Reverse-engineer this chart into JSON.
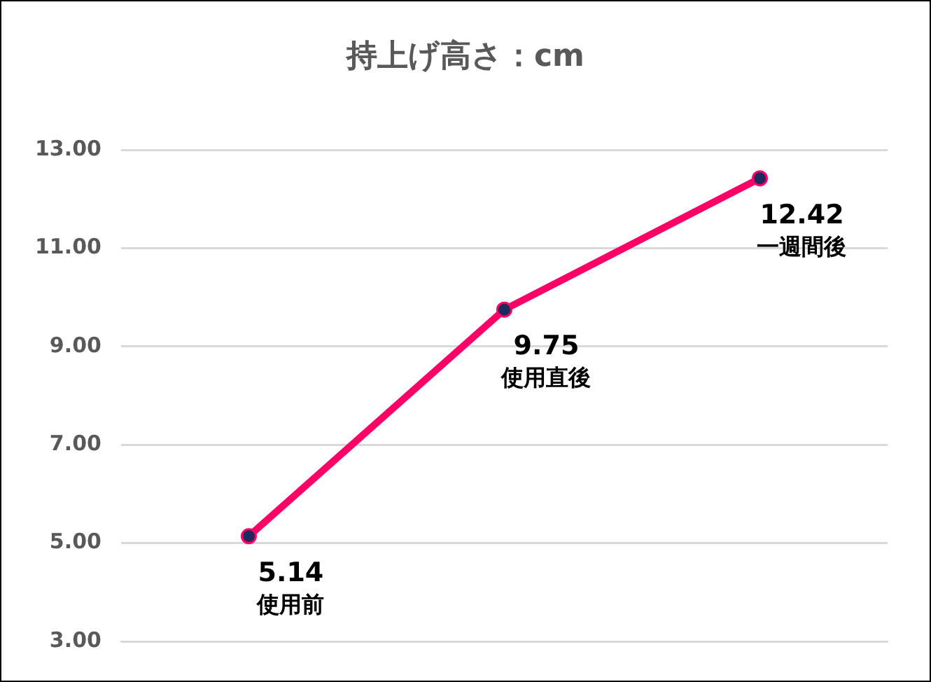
{
  "chart_data": {
    "type": "line",
    "title": "持上げ高さ：cm",
    "categories": [
      "使用前",
      "使用直後",
      "一週間後"
    ],
    "series": [
      {
        "color": "#ff0066",
        "values": [
          5.14,
          9.75,
          12.42
        ]
      }
    ],
    "ylim": [
      3,
      13
    ],
    "yticks": [
      {
        "value": 3,
        "label": "3.00"
      },
      {
        "value": 5,
        "label": "5.00"
      },
      {
        "value": 7,
        "label": "7.00"
      },
      {
        "value": 9,
        "label": "9.00"
      },
      {
        "value": 11,
        "label": "11.00"
      },
      {
        "value": 13,
        "label": "13.00"
      }
    ],
    "grid": "y",
    "legend": false,
    "marker": "circle",
    "line_style": "solid",
    "data_labels": true,
    "tick_labels": "y"
  }
}
